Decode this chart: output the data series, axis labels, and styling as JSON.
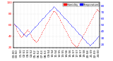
{
  "red_color": "#ff0000",
  "blue_color": "#0000ff",
  "background_color": "#ffffff",
  "grid_color": "#bbbbbb",
  "legend_humidity_label": "Humidity",
  "legend_temp_label": "Temperature",
  "ylim_humidity": [
    20,
    100
  ],
  "ylim_temp": [
    15,
    85
  ],
  "figsize": [
    1.6,
    0.87
  ],
  "dpi": 100,
  "humidity_data": [
    62,
    60,
    58,
    55,
    52,
    50,
    48,
    46,
    44,
    42,
    41,
    40,
    39,
    40,
    41,
    42,
    44,
    45,
    46,
    47,
    48,
    50,
    51,
    52,
    50,
    48,
    46,
    44,
    42,
    40,
    38,
    36,
    35,
    34,
    33,
    32,
    31,
    30,
    31,
    32,
    33,
    35,
    37,
    39,
    41,
    43,
    45,
    47,
    49,
    51,
    53,
    55,
    57,
    59,
    61,
    63,
    65,
    67,
    69,
    71,
    73,
    75,
    77,
    79,
    81,
    83,
    84,
    85,
    84,
    83,
    82,
    81,
    80,
    78,
    76,
    74,
    72,
    70,
    68,
    66,
    64,
    62,
    60,
    58,
    56,
    54,
    52,
    50,
    48,
    46,
    44,
    42,
    40,
    38,
    36,
    34,
    32,
    30,
    28,
    27,
    26,
    25,
    24,
    23,
    22,
    21,
    22,
    23,
    25,
    27,
    29,
    31,
    33,
    35,
    37,
    39,
    41,
    43,
    45,
    47,
    49,
    51,
    53,
    55,
    57,
    59,
    61,
    63,
    65,
    67,
    69,
    71,
    73,
    75,
    77,
    79,
    81,
    83,
    85,
    87,
    88,
    87,
    86,
    85
  ],
  "temp_data": [
    52,
    51,
    50,
    49,
    48,
    47,
    46,
    45,
    44,
    43,
    42,
    41,
    40,
    39,
    38,
    37,
    36,
    35,
    34,
    33,
    32,
    33,
    34,
    35,
    36,
    37,
    38,
    39,
    40,
    41,
    42,
    43,
    44,
    45,
    46,
    47,
    48,
    49,
    50,
    51,
    52,
    53,
    54,
    55,
    56,
    57,
    58,
    59,
    60,
    61,
    62,
    63,
    64,
    65,
    66,
    67,
    68,
    69,
    70,
    71,
    72,
    73,
    74,
    75,
    76,
    77,
    78,
    79,
    78,
    77,
    76,
    75,
    74,
    73,
    72,
    71,
    70,
    69,
    68,
    67,
    66,
    65,
    64,
    63,
    62,
    61,
    60,
    59,
    58,
    57,
    56,
    55,
    54,
    53,
    52,
    51,
    50,
    49,
    48,
    47,
    46,
    45,
    44,
    43,
    42,
    41,
    40,
    39,
    38,
    37,
    36,
    35,
    34,
    33,
    32,
    31,
    30,
    29,
    28,
    27,
    26,
    25,
    24,
    23,
    22,
    21,
    20,
    19,
    18,
    19,
    20,
    21,
    22,
    23,
    24,
    25,
    26,
    27,
    28,
    29,
    30,
    31,
    32,
    33
  ],
  "marker_size": 0.8,
  "tick_fontsize": 3.0,
  "title_fontsize": 2.8,
  "legend_fontsize": 2.5
}
